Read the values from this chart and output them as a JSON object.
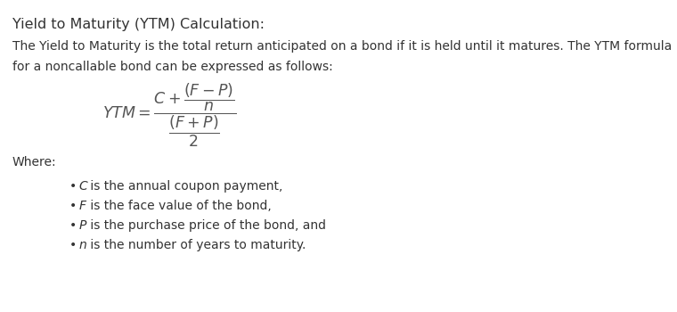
{
  "title": "Yield to Maturity (YTM) Calculation:",
  "intro_line1": "The Yield to Maturity is the total return anticipated on a bond if it is held until it matures. The YTM formula",
  "intro_line2": "for a noncallable bond can be expressed as follows:",
  "where_label": "Where:",
  "bullet_vars": [
    "$C$",
    "$F$",
    "$P$",
    "$n$"
  ],
  "bullet_descs": [
    " is the annual coupon payment,",
    " is the face value of the bond,",
    " is the purchase price of the bond, and",
    " is the number of years to maturity."
  ],
  "bg_color": "#ffffff",
  "text_color": "#333333",
  "formula_color": "#555555",
  "title_fontsize": 11.5,
  "body_fontsize": 10.0,
  "formula_fontsize": 12.5
}
